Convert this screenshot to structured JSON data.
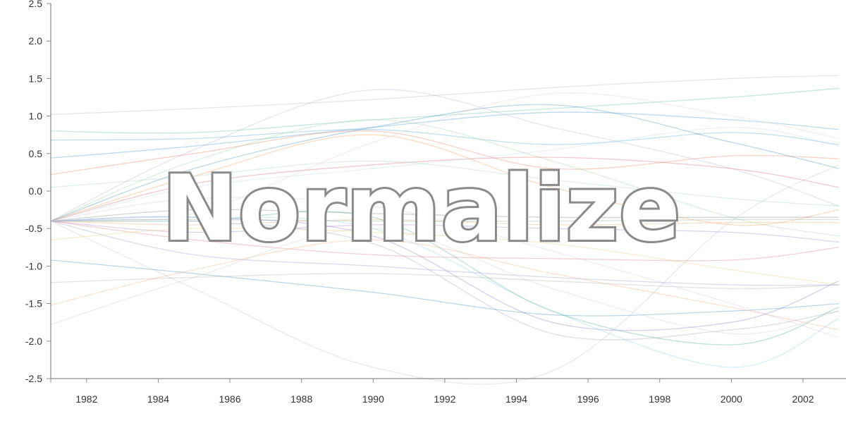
{
  "overlay": {
    "text": "Normalize",
    "fill": "#ffffff",
    "stroke": "#8a8a8a"
  },
  "chart_data": {
    "type": "line",
    "title": "",
    "xlabel": "",
    "ylabel": "",
    "xlim": [
      1981,
      2003.2
    ],
    "ylim": [
      -2.5,
      2.5
    ],
    "x": [
      1981,
      1985,
      1990,
      1995,
      2000,
      2003
    ],
    "x_ticks": [
      "1982",
      "1984",
      "1986",
      "1988",
      "1990",
      "1992",
      "1994",
      "1996",
      "1998",
      "2000",
      "2002"
    ],
    "y_ticks": [
      "2.5",
      "2.0",
      "1.5",
      "1.0",
      "0.5",
      "0.0",
      "-0.5",
      "-1.0",
      "-1.5",
      "-2.0",
      "-2.5"
    ],
    "grid": false,
    "legend": "none",
    "series": [
      {
        "values": [
          1.02,
          1.1,
          1.22,
          1.38,
          1.5,
          1.54
        ],
        "color": "#bdbdbd"
      },
      {
        "values": [
          0.8,
          0.78,
          0.95,
          1.1,
          1.25,
          1.37
        ],
        "color": "#66c2a5"
      },
      {
        "values": [
          0.44,
          0.6,
          0.85,
          1.05,
          0.95,
          0.82
        ],
        "color": "#4ea0d6"
      },
      {
        "values": [
          0.68,
          0.7,
          0.82,
          0.62,
          0.78,
          0.62
        ],
        "color": "#5aaae0"
      },
      {
        "values": [
          0.22,
          0.5,
          0.8,
          0.3,
          0.47,
          0.43
        ],
        "color": "#f08a6a"
      },
      {
        "values": [
          -0.4,
          0.55,
          1.35,
          0.85,
          0.3,
          -0.2
        ],
        "color": "#b8b8d8"
      },
      {
        "values": [
          -0.4,
          0.4,
          0.95,
          0.4,
          -0.35,
          -0.6
        ],
        "color": "#a0d8a0"
      },
      {
        "values": [
          -0.4,
          0.3,
          0.85,
          1.15,
          0.65,
          0.3
        ],
        "color": "#4e92c8"
      },
      {
        "values": [
          -0.4,
          0.2,
          0.75,
          0.05,
          -0.45,
          -0.25
        ],
        "color": "#f5a45a"
      },
      {
        "values": [
          -0.4,
          0.1,
          0.35,
          0.45,
          0.3,
          0.05
        ],
        "color": "#e07070"
      },
      {
        "values": [
          -0.4,
          -0.25,
          -0.3,
          -0.35,
          -0.35,
          -0.35
        ],
        "color": "#8c8c8c"
      },
      {
        "values": [
          -0.4,
          -0.38,
          -0.4,
          -0.4,
          -0.38,
          -0.38
        ],
        "color": "#9cb39c"
      },
      {
        "values": [
          -0.4,
          -0.45,
          -0.38,
          -0.45,
          -0.42,
          -0.42
        ],
        "color": "#f2b67a"
      },
      {
        "values": [
          -0.4,
          -0.55,
          -0.45,
          -0.5,
          -0.55,
          -0.68
        ],
        "color": "#b08ad0"
      },
      {
        "values": [
          -0.4,
          -0.65,
          -0.85,
          -0.9,
          -0.92,
          -0.75
        ],
        "color": "#e08a8a"
      },
      {
        "values": [
          -0.4,
          -0.85,
          -1.0,
          -1.15,
          -1.25,
          -1.25
        ],
        "color": "#9f9fe0"
      },
      {
        "values": [
          -0.4,
          -0.4,
          -0.35,
          -1.6,
          -2.05,
          -1.55
        ],
        "color": "#4fb3a0"
      },
      {
        "values": [
          -0.4,
          -0.35,
          -0.6,
          -1.75,
          -1.75,
          -1.2
        ],
        "color": "#8e7fd0"
      },
      {
        "values": [
          -0.4,
          -0.35,
          -0.5,
          -1.6,
          -2.35,
          -1.7
        ],
        "color": "#8fd0e8"
      },
      {
        "values": [
          -0.4,
          -0.4,
          -0.7,
          -1.9,
          -1.85,
          -1.6
        ],
        "color": "#a9a9c9"
      },
      {
        "values": [
          -0.4,
          -1.3,
          -2.35,
          -2.4,
          -0.4,
          0.35
        ],
        "color": "#c4c4c4"
      },
      {
        "values": [
          -0.92,
          -1.1,
          -1.35,
          -1.65,
          -1.6,
          -1.5
        ],
        "color": "#4e92c8"
      },
      {
        "values": [
          -1.22,
          -1.15,
          -1.1,
          -1.2,
          -1.3,
          -1.25
        ],
        "color": "#b3b3b3"
      },
      {
        "values": [
          -1.52,
          -1.05,
          -0.65,
          -1.1,
          -1.55,
          -1.85
        ],
        "color": "#f5b08a"
      },
      {
        "values": [
          -1.78,
          -1.15,
          -0.5,
          -1.3,
          -1.9,
          -1.6
        ],
        "color": "#d0d0d0"
      },
      {
        "values": [
          -0.65,
          -0.5,
          -0.55,
          -0.7,
          -1.05,
          -1.25
        ],
        "color": "#f3cd7a"
      },
      {
        "values": [
          0.05,
          0.2,
          0.4,
          0.15,
          -0.1,
          -0.2
        ],
        "color": "#a8d8c0"
      },
      {
        "values": [
          -0.4,
          0.05,
          0.3,
          0.55,
          0.85,
          0.6
        ],
        "color": "#bcdff0"
      },
      {
        "values": [
          -0.4,
          -0.1,
          -0.2,
          -0.8,
          -1.5,
          -1.95
        ],
        "color": "#d8c8e8"
      },
      {
        "values": [
          -0.4,
          -0.3,
          0.65,
          1.3,
          1.0,
          0.7
        ],
        "color": "#e8d0d0"
      }
    ]
  }
}
